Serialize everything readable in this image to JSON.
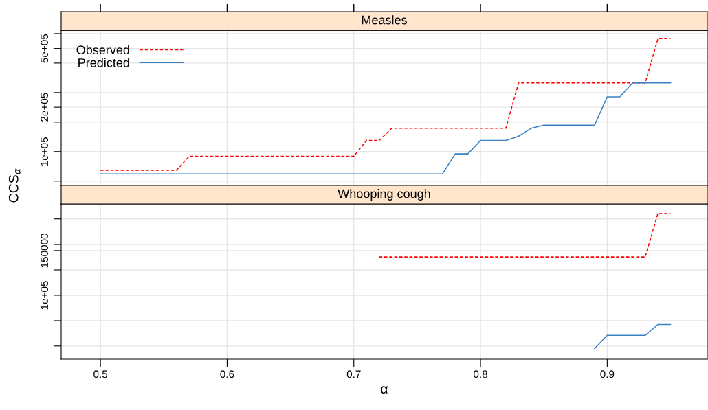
{
  "chart_data": [
    {
      "type": "line",
      "title": "Measles",
      "ylabel": "CCS$_{α}$",
      "log": "y",
      "grid": true,
      "legend": "top left",
      "tick_labels": "y",
      "xlim": [
        0.469,
        0.979
      ],
      "xticks": [
        0.5,
        0.6,
        0.7,
        0.8,
        0.9
      ],
      "ylim": [
        59000,
        664000
      ],
      "yticks": [
        {
          "value": 63100,
          "label": null
        },
        {
          "value": 100000,
          "label": "1e+05"
        },
        {
          "value": 158500,
          "label": null
        },
        {
          "value": 200000,
          "label": "2e+05"
        },
        {
          "value": 251200,
          "label": null
        },
        {
          "value": 398100,
          "label": null
        },
        {
          "value": 500000,
          "label": "5e+05"
        },
        {
          "value": 631000,
          "label": null
        }
      ],
      "series": [
        {
          "name": "Observed",
          "color": "#ff0000",
          "line_style": "dashed",
          "x": [
            0.5,
            0.51,
            0.52,
            0.53,
            0.54,
            0.55,
            0.56,
            0.57,
            0.58,
            0.59,
            0.6,
            0.61,
            0.62,
            0.63,
            0.64,
            0.65,
            0.66,
            0.67,
            0.68,
            0.69,
            0.7,
            0.71,
            0.72,
            0.73,
            0.74,
            0.75,
            0.76,
            0.77,
            0.78,
            0.79,
            0.8,
            0.81,
            0.82,
            0.83,
            0.84,
            0.85,
            0.86,
            0.87,
            0.88,
            0.89,
            0.9,
            0.91,
            0.92,
            0.93,
            0.94,
            0.95
          ],
          "values": [
            74800,
            74800,
            74800,
            74800,
            74800,
            74800,
            74800,
            93000,
            93000,
            93000,
            93000,
            93000,
            93000,
            93000,
            93000,
            93000,
            93000,
            93000,
            93000,
            93000,
            93000,
            119000,
            119000,
            144000,
            144000,
            144000,
            144000,
            144000,
            144000,
            144000,
            144000,
            144000,
            144000,
            292000,
            292000,
            292000,
            292000,
            292000,
            292000,
            292000,
            292000,
            292000,
            292000,
            292000,
            583000,
            583000
          ]
        },
        {
          "name": "Predicted",
          "color": "#3a80c2",
          "line_style": "solid",
          "x": [
            0.5,
            0.51,
            0.52,
            0.53,
            0.54,
            0.55,
            0.56,
            0.57,
            0.58,
            0.59,
            0.6,
            0.61,
            0.62,
            0.63,
            0.64,
            0.65,
            0.66,
            0.67,
            0.68,
            0.69,
            0.7,
            0.71,
            0.72,
            0.73,
            0.74,
            0.75,
            0.76,
            0.77,
            0.78,
            0.79,
            0.8,
            0.81,
            0.82,
            0.83,
            0.84,
            0.85,
            0.86,
            0.87,
            0.88,
            0.89,
            0.9,
            0.91,
            0.92,
            0.93,
            0.94,
            0.95
          ],
          "values": [
            70700,
            70700,
            70700,
            70700,
            70700,
            70700,
            70700,
            70700,
            70700,
            70700,
            70700,
            70700,
            70700,
            70700,
            70700,
            70700,
            70700,
            70700,
            70700,
            70700,
            70700,
            70700,
            70700,
            70700,
            70700,
            70700,
            70700,
            70700,
            96500,
            96500,
            119000,
            119000,
            119000,
            127000,
            144000,
            151000,
            151000,
            151000,
            151000,
            151000,
            235000,
            235000,
            292000,
            292000,
            292000,
            292000
          ]
        }
      ]
    },
    {
      "type": "line",
      "title": "Whooping cough",
      "xlabel": "α",
      "log": "y",
      "grid": true,
      "xlim": [
        0.469,
        0.979
      ],
      "xticks": [
        0.5,
        0.6,
        0.7,
        0.8,
        0.9
      ],
      "ylim": [
        56000,
        229000
      ],
      "yticks": [
        {
          "value": 63100,
          "label": null
        },
        {
          "value": 79400,
          "label": null
        },
        {
          "value": 100000,
          "label": "1e+05"
        },
        {
          "value": 125900,
          "label": null
        },
        {
          "value": 150000,
          "label": "150000"
        },
        {
          "value": 158500,
          "label": null
        },
        {
          "value": 200000,
          "label": null
        }
      ],
      "series": [
        {
          "color": "#ff0000",
          "line_style": "dashed",
          "x": [
            0.72,
            0.73,
            0.74,
            0.75,
            0.76,
            0.77,
            0.78,
            0.79,
            0.8,
            0.81,
            0.82,
            0.83,
            0.84,
            0.85,
            0.86,
            0.87,
            0.88,
            0.89,
            0.9,
            0.91,
            0.92,
            0.93,
            0.94,
            0.95
          ],
          "values": [
            141600,
            141600,
            141600,
            141600,
            141600,
            141600,
            141600,
            141600,
            141600,
            141600,
            141600,
            141600,
            141600,
            141600,
            141600,
            141600,
            141600,
            141600,
            141600,
            141600,
            141600,
            141600,
            210000,
            210000
          ]
        },
        {
          "color": "#3a80c2",
          "line_style": "solid",
          "x": [
            0.89,
            0.9,
            0.91,
            0.92,
            0.93,
            0.94,
            0.95
          ],
          "values": [
            61700,
            69500,
            69500,
            69500,
            69500,
            76700,
            76700
          ]
        }
      ]
    }
  ]
}
